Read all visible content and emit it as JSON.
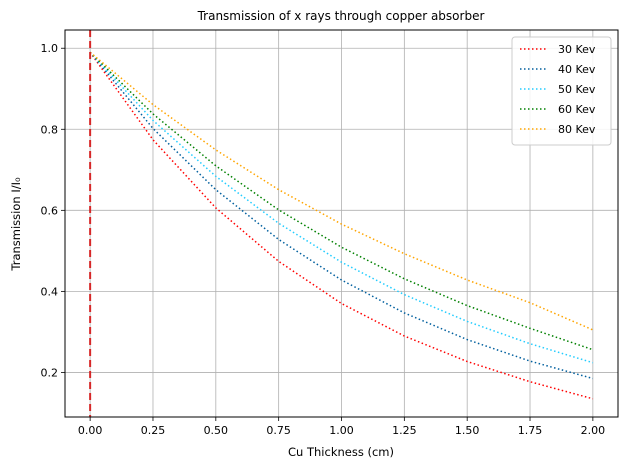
{
  "chart_data": {
    "type": "line",
    "title": "Transmission of x rays through copper absorber",
    "xlabel": "Cu Thickness (cm)",
    "ylabel": "Transmission I/I₀",
    "xlim": [
      -0.1,
      2.1
    ],
    "ylim": [
      0.09,
      1.045
    ],
    "xticks": [
      0.0,
      0.25,
      0.5,
      0.75,
      1.0,
      1.25,
      1.5,
      1.75,
      2.0
    ],
    "xtick_labels": [
      "0.00",
      "0.25",
      "0.50",
      "0.75",
      "1.00",
      "1.25",
      "1.50",
      "1.75",
      "2.00"
    ],
    "yticks": [
      0.2,
      0.4,
      0.6,
      0.8,
      1.0
    ],
    "ytick_labels": [
      "0.2",
      "0.4",
      "0.6",
      "0.8",
      "1.0"
    ],
    "grid": true,
    "legend_position": "top-right",
    "vline": {
      "x": 0.0,
      "color": "#d62728",
      "style": "dashed"
    },
    "x": [
      0.0,
      0.25,
      0.5,
      0.75,
      1.0,
      1.25,
      1.5,
      1.75,
      2.0
    ],
    "series": [
      {
        "name": "30 Kev",
        "color": "#ff0000",
        "values": [
          0.99,
          0.774,
          0.606,
          0.474,
          0.37,
          0.29,
          0.227,
          0.177,
          0.135
        ]
      },
      {
        "name": "40 Kev",
        "color": "#005f9e",
        "values": [
          0.99,
          0.802,
          0.651,
          0.528,
          0.428,
          0.347,
          0.281,
          0.228,
          0.185
        ]
      },
      {
        "name": "50 Kev",
        "color": "#22ccff",
        "values": [
          0.99,
          0.822,
          0.684,
          0.568,
          0.472,
          0.392,
          0.326,
          0.271,
          0.224
        ]
      },
      {
        "name": "60 Kev",
        "color": "#008000",
        "values": [
          0.99,
          0.838,
          0.71,
          0.601,
          0.509,
          0.431,
          0.365,
          0.309,
          0.256
        ]
      },
      {
        "name": "80 Kev",
        "color": "#ffa500",
        "values": [
          0.99,
          0.861,
          0.749,
          0.651,
          0.566,
          0.493,
          0.428,
          0.372,
          0.305
        ]
      }
    ]
  }
}
